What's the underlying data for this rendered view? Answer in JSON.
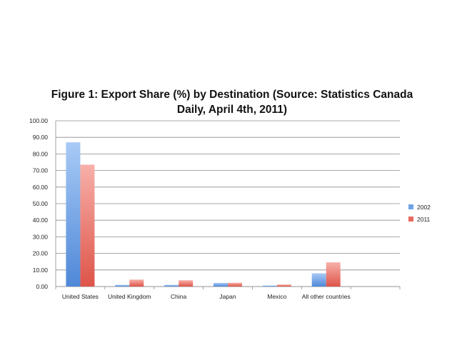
{
  "chart_data": {
    "type": "bar",
    "title": "Figure 1: Export Share (%) by Destination (Source: Statistics Canada Daily, April 4th, 2011)",
    "xlabel": "",
    "ylabel": "",
    "categories": [
      "United States",
      "United Kingdom",
      "China",
      "Japan",
      "Mexico",
      "All other countries"
    ],
    "series": [
      {
        "name": "2002",
        "values": [
          87.0,
          1.0,
          1.0,
          2.2,
          0.6,
          8.0
        ],
        "color": "#6fa3e6"
      },
      {
        "name": "2011",
        "values": [
          73.5,
          4.2,
          3.8,
          2.3,
          1.2,
          14.6
        ],
        "color": "#e86a60"
      }
    ],
    "ylim": [
      0,
      100
    ],
    "yticks": [
      "0.00",
      "10.00",
      "20.00",
      "30.00",
      "40.00",
      "50.00",
      "60.00",
      "70.00",
      "80.00",
      "90.00",
      "100.00"
    ],
    "grid": true,
    "legend": "right"
  }
}
